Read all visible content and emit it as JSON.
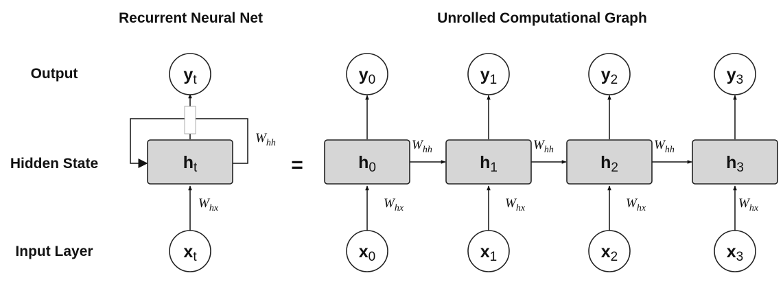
{
  "titles": {
    "left": "Recurrent Neural Net",
    "right": "Unrolled Computational Graph"
  },
  "rows": {
    "output": "Output",
    "hidden": "Hidden State",
    "input": "Input Layer"
  },
  "equals": "=",
  "weights": {
    "hh": {
      "main": "W",
      "sub": "hh"
    },
    "hx": {
      "main": "W",
      "sub": "hx"
    }
  },
  "folded": {
    "output": {
      "main": "y",
      "sub": "t"
    },
    "hidden": {
      "main": "h",
      "sub": "t"
    },
    "input": {
      "main": "x",
      "sub": "t"
    }
  },
  "steps": [
    {
      "output": {
        "main": "y",
        "sub": "0"
      },
      "hidden": {
        "main": "h",
        "sub": "0"
      },
      "input": {
        "main": "x",
        "sub": "0"
      }
    },
    {
      "output": {
        "main": "y",
        "sub": "1"
      },
      "hidden": {
        "main": "h",
        "sub": "1"
      },
      "input": {
        "main": "x",
        "sub": "1"
      }
    },
    {
      "output": {
        "main": "y",
        "sub": "2"
      },
      "hidden": {
        "main": "h",
        "sub": "2"
      },
      "input": {
        "main": "x",
        "sub": "2"
      }
    },
    {
      "output": {
        "main": "y",
        "sub": "3"
      },
      "hidden": {
        "main": "h",
        "sub": "3"
      },
      "input": {
        "main": "x",
        "sub": "3"
      }
    }
  ]
}
